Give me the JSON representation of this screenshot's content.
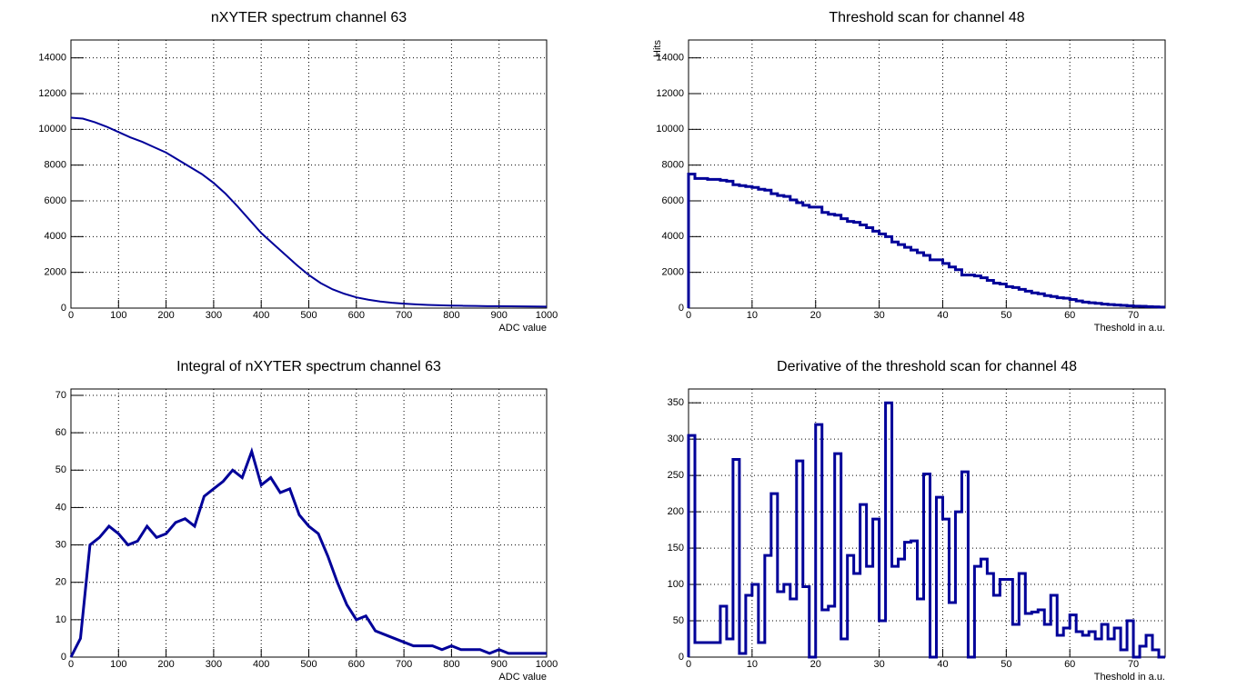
{
  "chart_data": [
    {
      "type": "line",
      "title": "nXYTER spectrum channel 63",
      "x_label": "ADC value",
      "color": "#000099",
      "grid": true,
      "xlim": [
        0,
        1000
      ],
      "xticks": [
        0,
        100,
        200,
        300,
        400,
        500,
        600,
        700,
        800,
        900,
        1000
      ],
      "ylim": [
        0,
        15000
      ],
      "yticks": [
        0,
        2000,
        4000,
        6000,
        8000,
        10000,
        12000,
        14000
      ],
      "x": [
        0,
        25,
        50,
        75,
        100,
        125,
        150,
        175,
        200,
        225,
        250,
        275,
        300,
        325,
        350,
        375,
        400,
        425,
        450,
        475,
        500,
        525,
        550,
        575,
        600,
        625,
        650,
        675,
        700,
        725,
        750,
        775,
        800,
        825,
        850,
        875,
        900,
        925,
        950,
        975,
        1000
      ],
      "values": [
        10650,
        10600,
        10400,
        10150,
        9850,
        9550,
        9300,
        9000,
        8700,
        8300,
        7900,
        7500,
        7000,
        6400,
        5700,
        4950,
        4200,
        3600,
        3000,
        2400,
        1850,
        1400,
        1050,
        800,
        600,
        470,
        370,
        300,
        250,
        210,
        180,
        160,
        140,
        130,
        120,
        110,
        105,
        100,
        95,
        90,
        85
      ]
    },
    {
      "type": "histogram",
      "title": "Threshold scan for channel 48",
      "x_label": "Theshold in a.u.",
      "y_label": "Hits",
      "color": "#000099",
      "grid": true,
      "xlim": [
        0,
        75
      ],
      "xticks": [
        0,
        10,
        20,
        30,
        40,
        50,
        60,
        70
      ],
      "ylim": [
        0,
        15000
      ],
      "yticks": [
        0,
        2000,
        4000,
        6000,
        8000,
        10000,
        12000,
        14000
      ],
      "bins": [
        0,
        1,
        2,
        3,
        4,
        5,
        6,
        7,
        8,
        9,
        10,
        11,
        12,
        13,
        14,
        15,
        16,
        17,
        18,
        19,
        20,
        21,
        22,
        23,
        24,
        25,
        26,
        27,
        28,
        29,
        30,
        31,
        32,
        33,
        34,
        35,
        36,
        37,
        38,
        39,
        40,
        41,
        42,
        43,
        44,
        45,
        46,
        47,
        48,
        49,
        50,
        51,
        52,
        53,
        54,
        55,
        56,
        57,
        58,
        59,
        60,
        61,
        62,
        63,
        64,
        65,
        66,
        67,
        68,
        69,
        70,
        71,
        72,
        73,
        74,
        75
      ],
      "values": [
        7500,
        7250,
        7250,
        7200,
        7200,
        7150,
        7100,
        6900,
        6850,
        6800,
        6750,
        6650,
        6600,
        6400,
        6300,
        6250,
        6050,
        5900,
        5750,
        5650,
        5650,
        5350,
        5250,
        5200,
        5000,
        4850,
        4800,
        4650,
        4500,
        4300,
        4150,
        4000,
        3700,
        3550,
        3400,
        3250,
        3100,
        2950,
        2700,
        2700,
        2500,
        2300,
        2150,
        1850,
        1850,
        1800,
        1700,
        1550,
        1400,
        1350,
        1200,
        1150,
        1050,
        950,
        850,
        800,
        700,
        650,
        580,
        550,
        480,
        400,
        340,
        300,
        270,
        220,
        200,
        170,
        150,
        130,
        110,
        100,
        80,
        70,
        60
      ]
    },
    {
      "type": "line",
      "title": "Integral of nXYTER spectrum channel 63",
      "x_label": "ADC value",
      "color": "#000099",
      "grid": true,
      "xlim": [
        0,
        1000
      ],
      "xticks": [
        0,
        100,
        200,
        300,
        400,
        500,
        600,
        700,
        800,
        900,
        1000
      ],
      "ylim": [
        0,
        71.7
      ],
      "yticks": [
        0,
        10,
        20,
        30,
        40,
        50,
        60,
        70
      ],
      "x": [
        0,
        20,
        40,
        60,
        80,
        100,
        120,
        140,
        160,
        180,
        200,
        220,
        240,
        260,
        280,
        300,
        320,
        340,
        360,
        380,
        400,
        420,
        440,
        460,
        480,
        500,
        520,
        540,
        560,
        580,
        600,
        620,
        640,
        660,
        680,
        700,
        720,
        740,
        760,
        780,
        800,
        820,
        840,
        860,
        880,
        900,
        920,
        940,
        960,
        980,
        1000
      ],
      "values": [
        0,
        5,
        30,
        32,
        35,
        33,
        30,
        31,
        35,
        32,
        33,
        36,
        37,
        35,
        43,
        45,
        47,
        50,
        48,
        55,
        46,
        48,
        44,
        45,
        38,
        35,
        33,
        27,
        20,
        14,
        10,
        11,
        7,
        6,
        5,
        4,
        3,
        3,
        3,
        2,
        3,
        2,
        2,
        2,
        1,
        2,
        1,
        1,
        1,
        1,
        1
      ]
    },
    {
      "type": "histogram",
      "title": "Derivative of the threshold scan for channel 48",
      "x_label": "Theshold in a.u.",
      "color": "#000099",
      "grid": true,
      "xlim": [
        0,
        75
      ],
      "xticks": [
        0,
        10,
        20,
        30,
        40,
        50,
        60,
        70
      ],
      "ylim": [
        0,
        369
      ],
      "yticks": [
        0,
        50,
        100,
        150,
        200,
        250,
        300,
        350
      ],
      "bins": [
        0,
        1,
        2,
        3,
        4,
        5,
        6,
        7,
        8,
        9,
        10,
        11,
        12,
        13,
        14,
        15,
        16,
        17,
        18,
        19,
        20,
        21,
        22,
        23,
        24,
        25,
        26,
        27,
        28,
        29,
        30,
        31,
        32,
        33,
        34,
        35,
        36,
        37,
        38,
        39,
        40,
        41,
        42,
        43,
        44,
        45,
        46,
        47,
        48,
        49,
        50,
        51,
        52,
        53,
        54,
        55,
        56,
        57,
        58,
        59,
        60,
        61,
        62,
        63,
        64,
        65,
        66,
        67,
        68,
        69,
        70,
        71,
        72,
        73,
        74,
        75
      ],
      "values": [
        305,
        20,
        20,
        20,
        20,
        70,
        25,
        272,
        5,
        85,
        100,
        20,
        140,
        225,
        90,
        100,
        80,
        270,
        97,
        0,
        320,
        65,
        70,
        280,
        25,
        140,
        115,
        210,
        125,
        190,
        50,
        350,
        125,
        135,
        158,
        160,
        80,
        252,
        0,
        220,
        190,
        75,
        200,
        255,
        0,
        125,
        135,
        115,
        85,
        107,
        107,
        45,
        115,
        60,
        62,
        65,
        45,
        85,
        30,
        40,
        58,
        35,
        30,
        35,
        25,
        45,
        25,
        40,
        10,
        50,
        0,
        15,
        30,
        10,
        0
      ]
    }
  ]
}
